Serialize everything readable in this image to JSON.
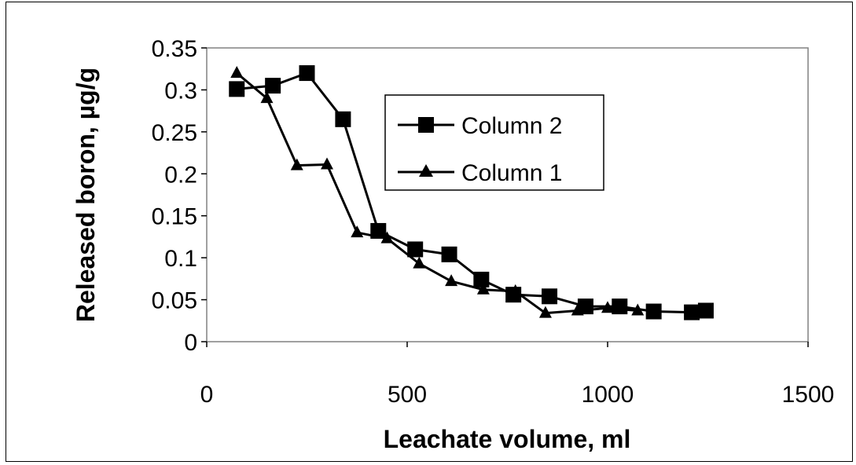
{
  "chart_data": {
    "type": "line",
    "title": "",
    "xlabel": "Leachate volume, ml",
    "ylabel": "Released boron, µg/g",
    "xlim": [
      0,
      1500
    ],
    "ylim": [
      0,
      0.35
    ],
    "x_ticks": [
      "0",
      "500",
      "1000",
      "1500"
    ],
    "y_ticks": [
      "0",
      "0.05",
      "0.1",
      "0.15",
      "0.2",
      "0.25",
      "0.3",
      "0.35"
    ],
    "grid": false,
    "legend_position": "top-right",
    "series": [
      {
        "name": "Column 2",
        "marker": "square",
        "color": "#000000",
        "x": [
          75,
          165,
          250,
          340,
          428,
          520,
          605,
          685,
          765,
          855,
          945,
          1030,
          1115,
          1210,
          1245
        ],
        "y": [
          0.301,
          0.305,
          0.32,
          0.265,
          0.132,
          0.11,
          0.104,
          0.074,
          0.056,
          0.054,
          0.042,
          0.042,
          0.036,
          0.035,
          0.037
        ]
      },
      {
        "name": "Column 1",
        "marker": "triangle",
        "color": "#000000",
        "x": [
          75,
          150,
          225,
          300,
          375,
          450,
          530,
          610,
          690,
          770,
          845,
          925,
          1000,
          1075
        ],
        "y": [
          0.32,
          0.29,
          0.21,
          0.211,
          0.13,
          0.123,
          0.093,
          0.072,
          0.062,
          0.06,
          0.034,
          0.037,
          0.04,
          0.037
        ]
      }
    ]
  }
}
